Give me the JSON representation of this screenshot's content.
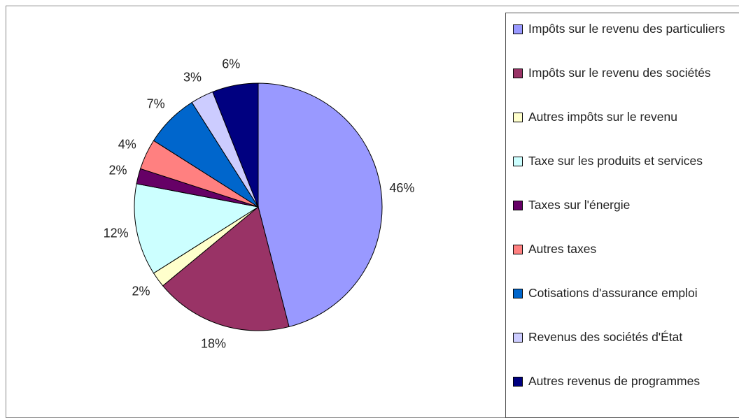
{
  "chart_data": {
    "type": "pie",
    "categories": [
      "Impôts sur le revenu des particuliers",
      "Impôts sur le revenu des sociétés",
      "Autres impôts sur le revenu",
      "Taxe sur les produits et services",
      "Taxes sur l'énergie",
      "Autres taxes",
      "Cotisations d'assurance emploi",
      "Revenus des sociétés d'État",
      "Autres revenus de programmes"
    ],
    "values": [
      46,
      18,
      2,
      12,
      2,
      4,
      7,
      3,
      6
    ],
    "value_labels": [
      "46%",
      "18%",
      "2%",
      "12%",
      "2%",
      "4%",
      "7%",
      "3%",
      "6%"
    ],
    "colors": [
      "#9999ff",
      "#993366",
      "#ffffcc",
      "#ccffff",
      "#660066",
      "#ff8080",
      "#0066cc",
      "#ccccff",
      "#000080"
    ],
    "legend": "right"
  }
}
